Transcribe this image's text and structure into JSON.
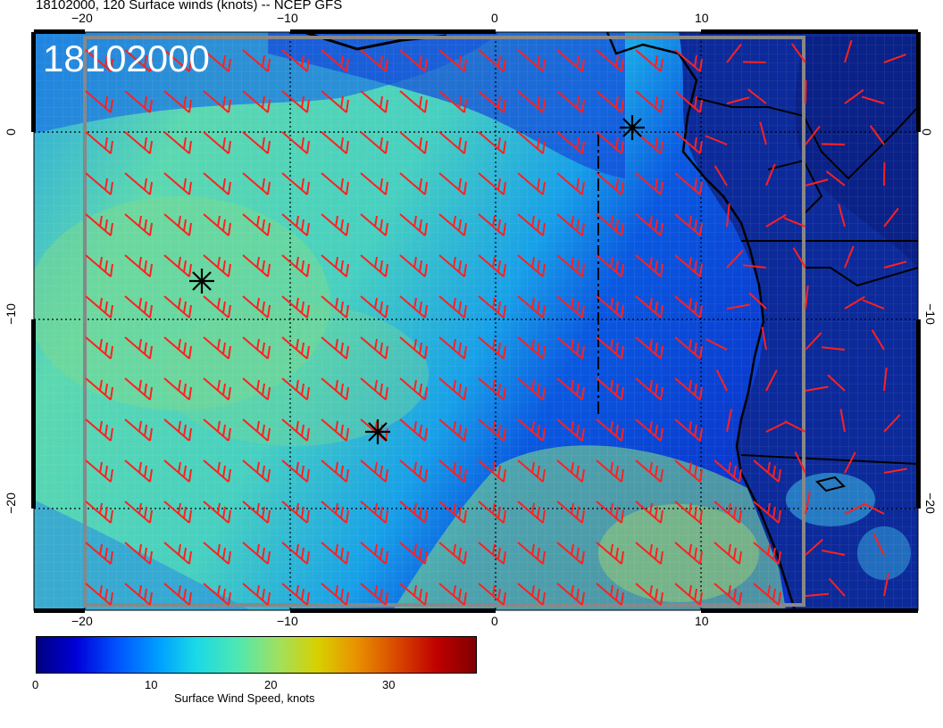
{
  "title": "18102000, 120 Surface winds (knots) -- NCEP GFS",
  "stamp": "18102000",
  "x_ticks_bottom": [
    "−20",
    "−10",
    "0",
    "10"
  ],
  "x_ticks_top": [
    "−20",
    "−10",
    "0",
    "10"
  ],
  "y_ticks_left": [
    "0",
    "−10",
    "−20"
  ],
  "y_ticks_right": [
    "0",
    "−10",
    "−20"
  ],
  "colorbar": {
    "label": "Surface Wind Speed, knots",
    "ticks": [
      "0",
      "10",
      "20",
      "30"
    ],
    "range": [
      0,
      37
    ]
  },
  "colors": {
    "barb": "#ff2020",
    "ocean_low": "#1a3bd8",
    "ocean_mid": "#2ab8d8",
    "ocean_high": "#6cd88a"
  },
  "markers": [
    "storm-marker",
    "storm-marker",
    "storm-marker"
  ],
  "icons": [
    "wind-barb-icon",
    "asterisk-marker-icon"
  ]
}
